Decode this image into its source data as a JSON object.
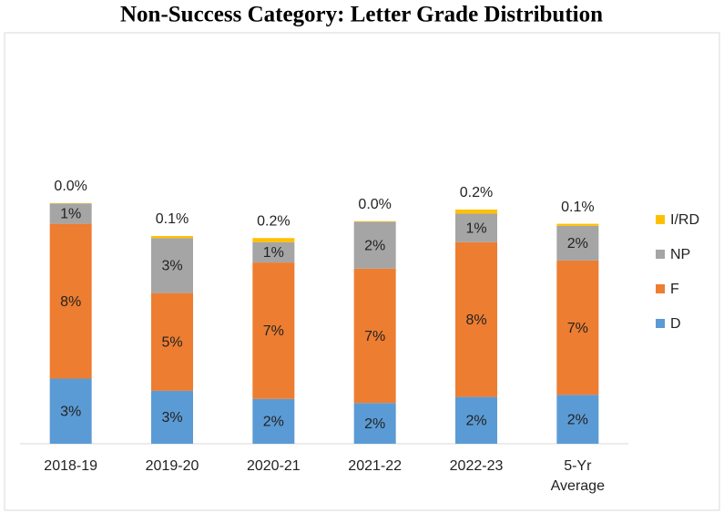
{
  "chart_data": {
    "type": "stacked-bar",
    "title": "Non-Success Category: Letter Grade Distribution",
    "categories": [
      "2018-19",
      "2019-20",
      "2020-21",
      "2021-22",
      "2022-23",
      "5-Yr Average"
    ],
    "series": [
      {
        "name": "D",
        "color": "#5b9bd5",
        "values": [
          3.2,
          2.6,
          2.2,
          2.0,
          2.3,
          2.4
        ],
        "value_labels": [
          "3%",
          "3%",
          "2%",
          "2%",
          "2%",
          "2%"
        ]
      },
      {
        "name": "F",
        "color": "#ed7d31",
        "values": [
          7.6,
          4.8,
          6.7,
          6.6,
          7.6,
          6.6
        ],
        "value_labels": [
          "8%",
          "5%",
          "7%",
          "7%",
          "8%",
          "7%"
        ]
      },
      {
        "name": "NP",
        "color": "#a5a5a5",
        "values": [
          1.0,
          2.7,
          1.0,
          2.3,
          1.4,
          1.7
        ],
        "value_labels": [
          "1%",
          "3%",
          "1%",
          "2%",
          "1%",
          "2%"
        ]
      },
      {
        "name": "I/RD",
        "color": "#ffc000",
        "values": [
          0.02,
          0.1,
          0.2,
          0.03,
          0.2,
          0.1
        ],
        "value_labels": [
          "0.0%",
          "0.1%",
          "0.2%",
          "0.0%",
          "0.2%",
          "0.1%"
        ]
      }
    ],
    "ylim": [
      0,
      20
    ],
    "legend": "right"
  }
}
